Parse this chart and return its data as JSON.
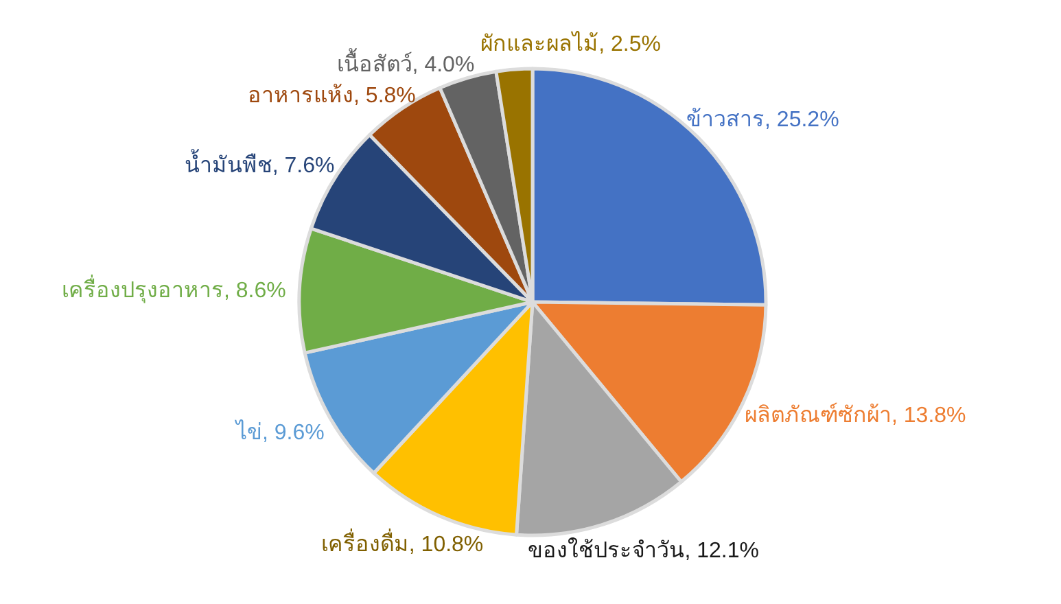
{
  "chart_data": {
    "type": "pie",
    "categories": [
      "ข้าวสาร",
      "ผลิตภัณฑ์ซักผ้า",
      "ของใช้ประจำวัน",
      "เครื่องดื่ม",
      "ไข่",
      "เครื่องปรุงอาหาร",
      "น้ำมันพืช",
      "อาหารแห้ง",
      "เนื้อสัตว์",
      "ผักและผลไม้"
    ],
    "values": [
      25.2,
      13.8,
      12.1,
      10.8,
      9.6,
      8.6,
      7.6,
      5.8,
      4.0,
      2.5
    ],
    "value_labels": [
      "25.2%",
      "13.8%",
      "12.1%",
      "10.8%",
      "9.6%",
      "8.6%",
      "7.6%",
      "5.8%",
      "4.0%",
      "2.5%"
    ],
    "colors": [
      "#4472c4",
      "#ed7d31",
      "#a5a5a5",
      "#ffc000",
      "#5b9bd5",
      "#70ad47",
      "#264478",
      "#9e480e",
      "#636363",
      "#997300"
    ]
  }
}
